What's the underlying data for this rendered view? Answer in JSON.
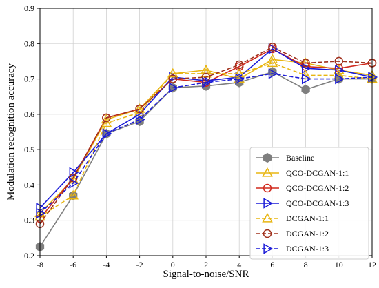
{
  "chart_data": {
    "type": "line",
    "xlabel": "Signal-to-noise/SNR",
    "ylabel": "Modulation recognition accuracy",
    "xlim": [
      -8,
      12
    ],
    "ylim": [
      0.2,
      0.9
    ],
    "x": [
      -8,
      -6,
      -4,
      -2,
      0,
      2,
      4,
      6,
      8,
      10,
      12
    ],
    "x_ticks": [
      "-8",
      "-6",
      "-4",
      "-2",
      "0",
      "2",
      "4",
      "6",
      "8",
      "10",
      "12"
    ],
    "y_ticks": [
      "0.2",
      "0.3",
      "0.4",
      "0.5",
      "0.6",
      "0.7",
      "0.8",
      "0.9"
    ],
    "grid": true,
    "legend_position": "bottom-right",
    "series": [
      {
        "name": "Baseline",
        "color": "#7f7f7f",
        "marker": "hexagon",
        "dash": "solid",
        "values": [
          0.225,
          0.37,
          0.545,
          0.58,
          0.675,
          0.68,
          0.69,
          0.72,
          0.67,
          0.7,
          0.7
        ]
      },
      {
        "name": "QCO-DCGAN-1:1",
        "color": "#e8b510",
        "marker": "triangle-up",
        "dash": "solid",
        "values": [
          0.32,
          0.415,
          0.585,
          0.615,
          0.715,
          0.725,
          0.7,
          0.755,
          0.745,
          0.725,
          0.71
        ]
      },
      {
        "name": "QCO-DCGAN-1:2",
        "color": "#d0281c",
        "marker": "circle",
        "dash": "solid",
        "values": [
          0.305,
          0.42,
          0.59,
          0.615,
          0.7,
          0.69,
          0.735,
          0.785,
          0.735,
          0.73,
          0.745
        ]
      },
      {
        "name": "QCO-DCGAN-1:3",
        "color": "#1a1ad8",
        "marker": "triangle-right",
        "dash": "solid",
        "values": [
          0.335,
          0.435,
          0.545,
          0.6,
          0.705,
          0.695,
          0.705,
          0.785,
          0.73,
          0.725,
          0.705
        ]
      },
      {
        "name": "DCGAN-1:1",
        "color": "#e8b510",
        "marker": "triangle-up",
        "dash": "dashed",
        "values": [
          0.31,
          0.37,
          0.575,
          0.605,
          0.715,
          0.715,
          0.715,
          0.745,
          0.71,
          0.71,
          0.7
        ]
      },
      {
        "name": "DCGAN-1:2",
        "color": "#a0301c",
        "marker": "circle",
        "dash": "dashed",
        "values": [
          0.29,
          0.42,
          0.59,
          0.615,
          0.7,
          0.705,
          0.74,
          0.79,
          0.745,
          0.75,
          0.745
        ]
      },
      {
        "name": "DCGAN-1:3",
        "color": "#1a1ad8",
        "marker": "triangle-right",
        "dash": "dashed",
        "values": [
          0.32,
          0.405,
          0.545,
          0.585,
          0.675,
          0.69,
          0.7,
          0.715,
          0.7,
          0.7,
          0.705
        ]
      }
    ]
  }
}
